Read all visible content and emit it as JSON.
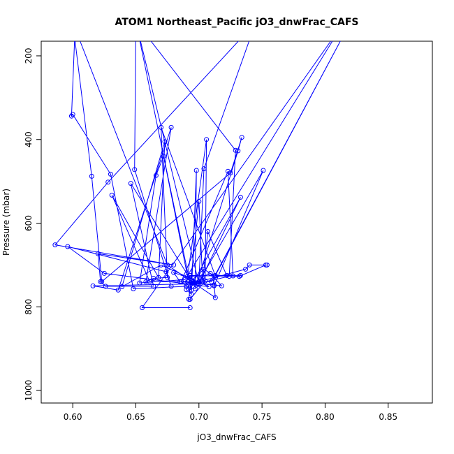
{
  "chart_data": {
    "type": "line",
    "title": "ATOM1 Northeast_Pacific jO3_dnwFrac_CAFS",
    "xlabel": "jO3_dnwFrac_CAFS",
    "ylabel": "Pressure (mbar)",
    "xlim": [
      0.575,
      0.885
    ],
    "ylim": [
      1030,
      165
    ],
    "y_reversed": true,
    "x_ticks": [
      0.6,
      0.65,
      0.7,
      0.75,
      0.8,
      0.85
    ],
    "x_tick_labels": [
      "0.60",
      "0.65",
      "0.70",
      "0.75",
      "0.80",
      "0.85"
    ],
    "y_ticks": [
      200,
      400,
      600,
      800,
      1000
    ],
    "y_tick_labels": [
      "200",
      "400",
      "600",
      "800",
      "1000"
    ],
    "grid": false,
    "legend": "none",
    "series": [
      {
        "color": "#0000ff",
        "marker": "open-circle",
        "points": [
          [
            0.602,
            120
          ],
          [
            0.599,
            344
          ],
          [
            0.6,
            340
          ],
          [
            0.63,
            483
          ],
          [
            0.648,
            757
          ],
          [
            0.69,
            751
          ],
          [
            0.697,
            757
          ],
          [
            0.698,
            474
          ],
          [
            0.694,
            770
          ],
          [
            0.69,
            759
          ],
          [
            0.695,
            738
          ],
          [
            0.71,
            740
          ],
          [
            0.82,
            120
          ],
          [
            0.713,
            725
          ],
          [
            0.733,
            725
          ],
          [
            0.722,
            725
          ],
          [
            0.707,
            620
          ],
          [
            0.703,
            740
          ],
          [
            0.7,
            548
          ],
          [
            0.692,
            782
          ],
          [
            0.693,
            782
          ],
          [
            0.705,
            738
          ],
          [
            0.706,
            400
          ],
          [
            0.69,
            750
          ],
          [
            0.691,
            740
          ],
          [
            0.712,
            748
          ],
          [
            0.713,
            778
          ],
          [
            0.675,
            700
          ],
          [
            0.6,
            120
          ],
          [
            0.615,
            488
          ],
          [
            0.623,
            740
          ],
          [
            0.725,
            480
          ],
          [
            0.734,
            395
          ],
          [
            0.731,
            427
          ],
          [
            0.698,
            748
          ],
          [
            0.693,
            725
          ],
          [
            0.732,
            727
          ],
          [
            0.753,
            700
          ],
          [
            0.754,
            700
          ],
          [
            0.74,
            700
          ],
          [
            0.737,
            710
          ],
          [
            0.695,
            744
          ],
          [
            0.733,
            538
          ],
          [
            0.7,
            745
          ],
          [
            0.65,
            118
          ],
          [
            0.694,
            760
          ],
          [
            0.686,
            740
          ],
          [
            0.723,
            476
          ],
          [
            0.727,
            726
          ],
          [
            0.713,
            726
          ],
          [
            0.67,
            371
          ],
          [
            0.675,
            730
          ],
          [
            0.664,
            732
          ],
          [
            0.658,
            740
          ],
          [
            0.678,
            371
          ],
          [
            0.636,
            760
          ],
          [
            0.616,
            750
          ],
          [
            0.699,
            745
          ],
          [
            0.751,
            474
          ],
          [
            0.712,
            750
          ],
          [
            0.712,
            726
          ],
          [
            0.704,
            710
          ],
          [
            0.694,
            738
          ],
          [
            0.646,
            505
          ],
          [
            0.664,
            751
          ],
          [
            0.626,
            751
          ],
          [
            0.622,
            740
          ],
          [
            0.62,
            673
          ],
          [
            0.68,
            700
          ],
          [
            0.586,
            652
          ],
          [
            0.628,
            502
          ],
          [
            0.745,
            120
          ],
          [
            0.704,
            470
          ],
          [
            0.7,
            740
          ],
          [
            0.693,
            748
          ],
          [
            0.724,
            727
          ],
          [
            0.729,
            426
          ],
          [
            0.65,
            118
          ],
          [
            0.649,
            472
          ],
          [
            0.678,
            751
          ],
          [
            0.674,
            716
          ],
          [
            0.596,
            656
          ],
          [
            0.625,
            720
          ],
          [
            0.708,
            752
          ],
          [
            0.67,
            700
          ],
          [
            0.639,
            752
          ],
          [
            0.673,
            405
          ],
          [
            0.668,
            730
          ],
          [
            0.631,
            533
          ],
          [
            0.661,
            740
          ],
          [
            0.7,
            740
          ],
          [
            0.68,
            718
          ],
          [
            0.685,
            740
          ],
          [
            0.718,
            750
          ],
          [
            0.709,
            720
          ],
          [
            0.703,
            728
          ],
          [
            0.691,
            727
          ],
          [
            0.672,
            440
          ],
          [
            0.666,
            486
          ],
          [
            0.653,
            743
          ],
          [
            0.689,
            735
          ],
          [
            0.815,
            120
          ],
          [
            0.655,
            802
          ],
          [
            0.693,
            802
          ]
        ]
      }
    ]
  }
}
